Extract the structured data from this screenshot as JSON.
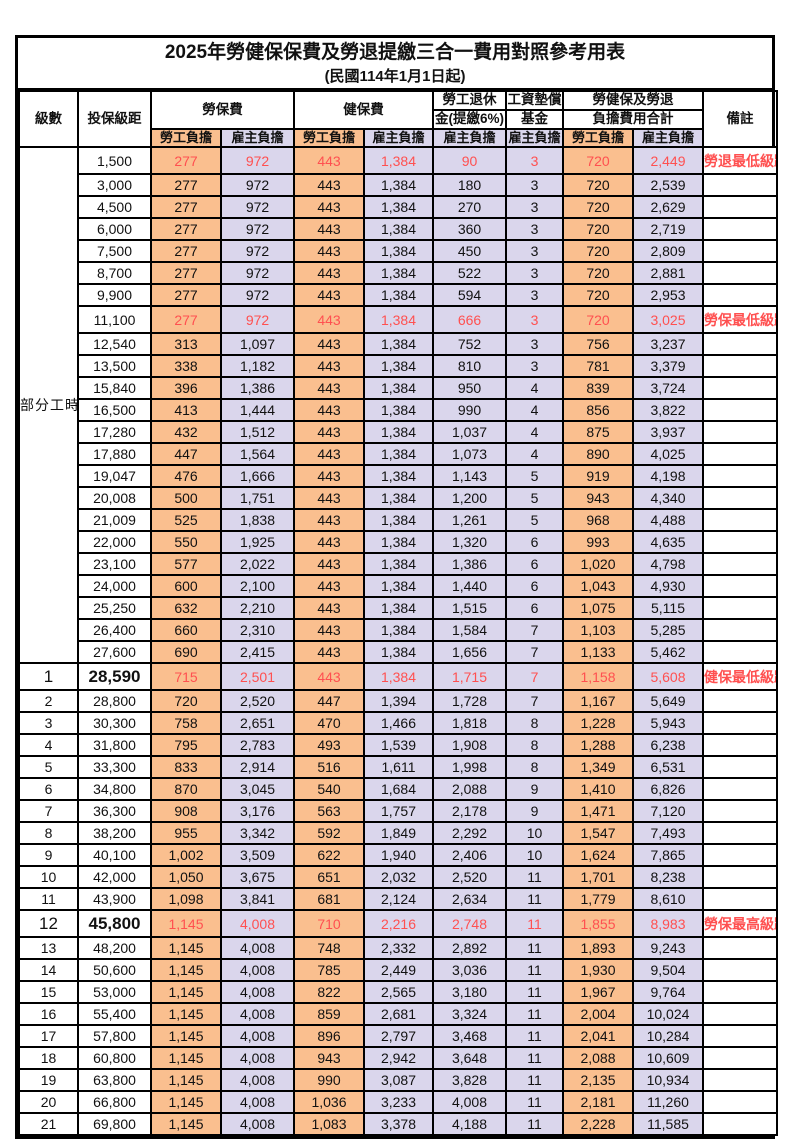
{
  "title": "2025年勞健保保費及勞退提繳三合一費用對照參考用表",
  "subtitle": "(民國114年1月1日起)",
  "colors": {
    "employee_bg": "#FABF8F",
    "employer_bg": "#DAD6EC",
    "highlight_text": "#FF5050",
    "grid": "#000000"
  },
  "table": {
    "headers": {
      "level": "級數",
      "bracket": "投保級距",
      "labor_group": "勞保費",
      "health_group": "健保費",
      "pension_line1": "勞工退休",
      "pension_line2": "金(提繳6%)",
      "wage_fund_line1": "工資墊償",
      "wage_fund_line2": "基金",
      "total_line1": "勞健保及勞退",
      "total_line2": "負擔費用合計",
      "employee": "勞工負擔",
      "employer": "雇主負擔",
      "remark": "備註"
    },
    "part_time_label": "部分工時",
    "value_columns": [
      "labor_employee",
      "labor_employer",
      "health_employee",
      "health_employer",
      "pension_employer",
      "wage_fund_employer",
      "total_employee",
      "total_employer"
    ],
    "part_time_rows": [
      {
        "bracket": "1,500",
        "values": [
          "277",
          "972",
          "443",
          "1,384",
          "90",
          "3",
          "720",
          "2,449"
        ],
        "remark": "勞退最低級距",
        "red": true
      },
      {
        "bracket": "3,000",
        "values": [
          "277",
          "972",
          "443",
          "1,384",
          "180",
          "3",
          "720",
          "2,539"
        ],
        "remark": ""
      },
      {
        "bracket": "4,500",
        "values": [
          "277",
          "972",
          "443",
          "1,384",
          "270",
          "3",
          "720",
          "2,629"
        ],
        "remark": ""
      },
      {
        "bracket": "6,000",
        "values": [
          "277",
          "972",
          "443",
          "1,384",
          "360",
          "3",
          "720",
          "2,719"
        ],
        "remark": ""
      },
      {
        "bracket": "7,500",
        "values": [
          "277",
          "972",
          "443",
          "1,384",
          "450",
          "3",
          "720",
          "2,809"
        ],
        "remark": ""
      },
      {
        "bracket": "8,700",
        "values": [
          "277",
          "972",
          "443",
          "1,384",
          "522",
          "3",
          "720",
          "2,881"
        ],
        "remark": ""
      },
      {
        "bracket": "9,900",
        "values": [
          "277",
          "972",
          "443",
          "1,384",
          "594",
          "3",
          "720",
          "2,953"
        ],
        "remark": ""
      },
      {
        "bracket": "11,100",
        "values": [
          "277",
          "972",
          "443",
          "1,384",
          "666",
          "3",
          "720",
          "3,025"
        ],
        "remark": "勞保最低級距",
        "red": true
      },
      {
        "bracket": "12,540",
        "values": [
          "313",
          "1,097",
          "443",
          "1,384",
          "752",
          "3",
          "756",
          "3,237"
        ],
        "remark": ""
      },
      {
        "bracket": "13,500",
        "values": [
          "338",
          "1,182",
          "443",
          "1,384",
          "810",
          "3",
          "781",
          "3,379"
        ],
        "remark": ""
      },
      {
        "bracket": "15,840",
        "values": [
          "396",
          "1,386",
          "443",
          "1,384",
          "950",
          "4",
          "839",
          "3,724"
        ],
        "remark": ""
      },
      {
        "bracket": "16,500",
        "values": [
          "413",
          "1,444",
          "443",
          "1,384",
          "990",
          "4",
          "856",
          "3,822"
        ],
        "remark": ""
      },
      {
        "bracket": "17,280",
        "values": [
          "432",
          "1,512",
          "443",
          "1,384",
          "1,037",
          "4",
          "875",
          "3,937"
        ],
        "remark": ""
      },
      {
        "bracket": "17,880",
        "values": [
          "447",
          "1,564",
          "443",
          "1,384",
          "1,073",
          "4",
          "890",
          "4,025"
        ],
        "remark": ""
      },
      {
        "bracket": "19,047",
        "values": [
          "476",
          "1,666",
          "443",
          "1,384",
          "1,143",
          "5",
          "919",
          "4,198"
        ],
        "remark": ""
      },
      {
        "bracket": "20,008",
        "values": [
          "500",
          "1,751",
          "443",
          "1,384",
          "1,200",
          "5",
          "943",
          "4,340"
        ],
        "remark": ""
      },
      {
        "bracket": "21,009",
        "values": [
          "525",
          "1,838",
          "443",
          "1,384",
          "1,261",
          "5",
          "968",
          "4,488"
        ],
        "remark": ""
      },
      {
        "bracket": "22,000",
        "values": [
          "550",
          "1,925",
          "443",
          "1,384",
          "1,320",
          "6",
          "993",
          "4,635"
        ],
        "remark": ""
      },
      {
        "bracket": "23,100",
        "values": [
          "577",
          "2,022",
          "443",
          "1,384",
          "1,386",
          "6",
          "1,020",
          "4,798"
        ],
        "remark": ""
      },
      {
        "bracket": "24,000",
        "values": [
          "600",
          "2,100",
          "443",
          "1,384",
          "1,440",
          "6",
          "1,043",
          "4,930"
        ],
        "remark": ""
      },
      {
        "bracket": "25,250",
        "values": [
          "632",
          "2,210",
          "443",
          "1,384",
          "1,515",
          "6",
          "1,075",
          "5,115"
        ],
        "remark": ""
      },
      {
        "bracket": "26,400",
        "values": [
          "660",
          "2,310",
          "443",
          "1,384",
          "1,584",
          "7",
          "1,103",
          "5,285"
        ],
        "remark": ""
      },
      {
        "bracket": "27,600",
        "values": [
          "690",
          "2,415",
          "443",
          "1,384",
          "1,656",
          "7",
          "1,133",
          "5,462"
        ],
        "remark": ""
      }
    ],
    "level_rows": [
      {
        "level": "1",
        "bracket": "28,590",
        "values": [
          "715",
          "2,501",
          "443",
          "1,384",
          "1,715",
          "7",
          "1,158",
          "5,608"
        ],
        "remark": "健保最低級距",
        "red": true,
        "big": true
      },
      {
        "level": "2",
        "bracket": "28,800",
        "values": [
          "720",
          "2,520",
          "447",
          "1,394",
          "1,728",
          "7",
          "1,167",
          "5,649"
        ],
        "remark": ""
      },
      {
        "level": "3",
        "bracket": "30,300",
        "values": [
          "758",
          "2,651",
          "470",
          "1,466",
          "1,818",
          "8",
          "1,228",
          "5,943"
        ],
        "remark": ""
      },
      {
        "level": "4",
        "bracket": "31,800",
        "values": [
          "795",
          "2,783",
          "493",
          "1,539",
          "1,908",
          "8",
          "1,288",
          "6,238"
        ],
        "remark": ""
      },
      {
        "level": "5",
        "bracket": "33,300",
        "values": [
          "833",
          "2,914",
          "516",
          "1,611",
          "1,998",
          "8",
          "1,349",
          "6,531"
        ],
        "remark": ""
      },
      {
        "level": "6",
        "bracket": "34,800",
        "values": [
          "870",
          "3,045",
          "540",
          "1,684",
          "2,088",
          "9",
          "1,410",
          "6,826"
        ],
        "remark": ""
      },
      {
        "level": "7",
        "bracket": "36,300",
        "values": [
          "908",
          "3,176",
          "563",
          "1,757",
          "2,178",
          "9",
          "1,471",
          "7,120"
        ],
        "remark": ""
      },
      {
        "level": "8",
        "bracket": "38,200",
        "values": [
          "955",
          "3,342",
          "592",
          "1,849",
          "2,292",
          "10",
          "1,547",
          "7,493"
        ],
        "remark": ""
      },
      {
        "level": "9",
        "bracket": "40,100",
        "values": [
          "1,002",
          "3,509",
          "622",
          "1,940",
          "2,406",
          "10",
          "1,624",
          "7,865"
        ],
        "remark": ""
      },
      {
        "level": "10",
        "bracket": "42,000",
        "values": [
          "1,050",
          "3,675",
          "651",
          "2,032",
          "2,520",
          "11",
          "1,701",
          "8,238"
        ],
        "remark": ""
      },
      {
        "level": "11",
        "bracket": "43,900",
        "values": [
          "1,098",
          "3,841",
          "681",
          "2,124",
          "2,634",
          "11",
          "1,779",
          "8,610"
        ],
        "remark": ""
      },
      {
        "level": "12",
        "bracket": "45,800",
        "values": [
          "1,145",
          "4,008",
          "710",
          "2,216",
          "2,748",
          "11",
          "1,855",
          "8,983"
        ],
        "remark": "勞保最高級距",
        "red": true,
        "big": true
      },
      {
        "level": "13",
        "bracket": "48,200",
        "values": [
          "1,145",
          "4,008",
          "748",
          "2,332",
          "2,892",
          "11",
          "1,893",
          "9,243"
        ],
        "remark": ""
      },
      {
        "level": "14",
        "bracket": "50,600",
        "values": [
          "1,145",
          "4,008",
          "785",
          "2,449",
          "3,036",
          "11",
          "1,930",
          "9,504"
        ],
        "remark": ""
      },
      {
        "level": "15",
        "bracket": "53,000",
        "values": [
          "1,145",
          "4,008",
          "822",
          "2,565",
          "3,180",
          "11",
          "1,967",
          "9,764"
        ],
        "remark": ""
      },
      {
        "level": "16",
        "bracket": "55,400",
        "values": [
          "1,145",
          "4,008",
          "859",
          "2,681",
          "3,324",
          "11",
          "2,004",
          "10,024"
        ],
        "remark": ""
      },
      {
        "level": "17",
        "bracket": "57,800",
        "values": [
          "1,145",
          "4,008",
          "896",
          "2,797",
          "3,468",
          "11",
          "2,041",
          "10,284"
        ],
        "remark": ""
      },
      {
        "level": "18",
        "bracket": "60,800",
        "values": [
          "1,145",
          "4,008",
          "943",
          "2,942",
          "3,648",
          "11",
          "2,088",
          "10,609"
        ],
        "remark": ""
      },
      {
        "level": "19",
        "bracket": "63,800",
        "values": [
          "1,145",
          "4,008",
          "990",
          "3,087",
          "3,828",
          "11",
          "2,135",
          "10,934"
        ],
        "remark": ""
      },
      {
        "level": "20",
        "bracket": "66,800",
        "values": [
          "1,145",
          "4,008",
          "1,036",
          "3,233",
          "4,008",
          "11",
          "2,181",
          "11,260"
        ],
        "remark": ""
      },
      {
        "level": "21",
        "bracket": "69,800",
        "values": [
          "1,145",
          "4,008",
          "1,083",
          "3,378",
          "4,188",
          "11",
          "2,228",
          "11,585"
        ],
        "remark": ""
      }
    ]
  }
}
